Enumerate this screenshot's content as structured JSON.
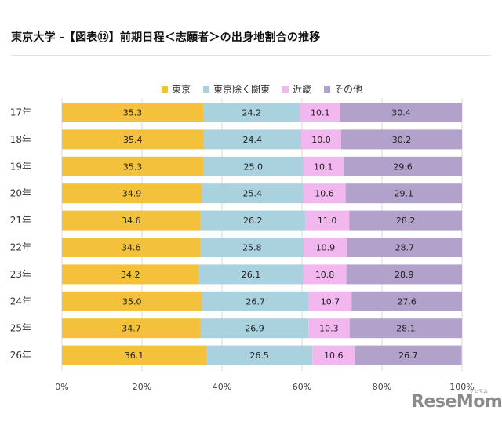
{
  "title": "東京大学 -【図表⑫】前期日程＜志願者＞の出身地割合の推移",
  "watermark": {
    "text": "ReseMom",
    "kana": "リセマム"
  },
  "chart_data": {
    "type": "bar",
    "orientation": "horizontal",
    "stacked": true,
    "percent_stacked": true,
    "categories": [
      "17年",
      "18年",
      "19年",
      "20年",
      "21年",
      "22年",
      "23年",
      "24年",
      "25年",
      "26年"
    ],
    "series": [
      {
        "name": "東京",
        "color": "#F4C13C",
        "values": [
          35.3,
          35.4,
          35.3,
          34.9,
          34.6,
          34.6,
          34.2,
          35.0,
          34.7,
          36.1
        ]
      },
      {
        "name": "東京除く関東",
        "color": "#A9D2DE",
        "values": [
          24.2,
          24.4,
          25.0,
          25.4,
          26.2,
          25.8,
          26.1,
          26.7,
          26.9,
          26.5
        ]
      },
      {
        "name": "近畿",
        "color": "#F2B7EF",
        "values": [
          10.1,
          10.0,
          10.1,
          10.6,
          11.0,
          10.9,
          10.8,
          10.7,
          10.3,
          10.6
        ]
      },
      {
        "name": "その他",
        "color": "#B2A2CB",
        "values": [
          30.4,
          30.2,
          29.6,
          29.1,
          28.2,
          28.7,
          28.9,
          27.6,
          28.1,
          26.7
        ]
      }
    ],
    "xticks": [
      "0%",
      "20%",
      "40%",
      "60%",
      "80%",
      "100%"
    ],
    "xlim": [
      0,
      100
    ],
    "legend_position": "top-center",
    "grid": true
  }
}
